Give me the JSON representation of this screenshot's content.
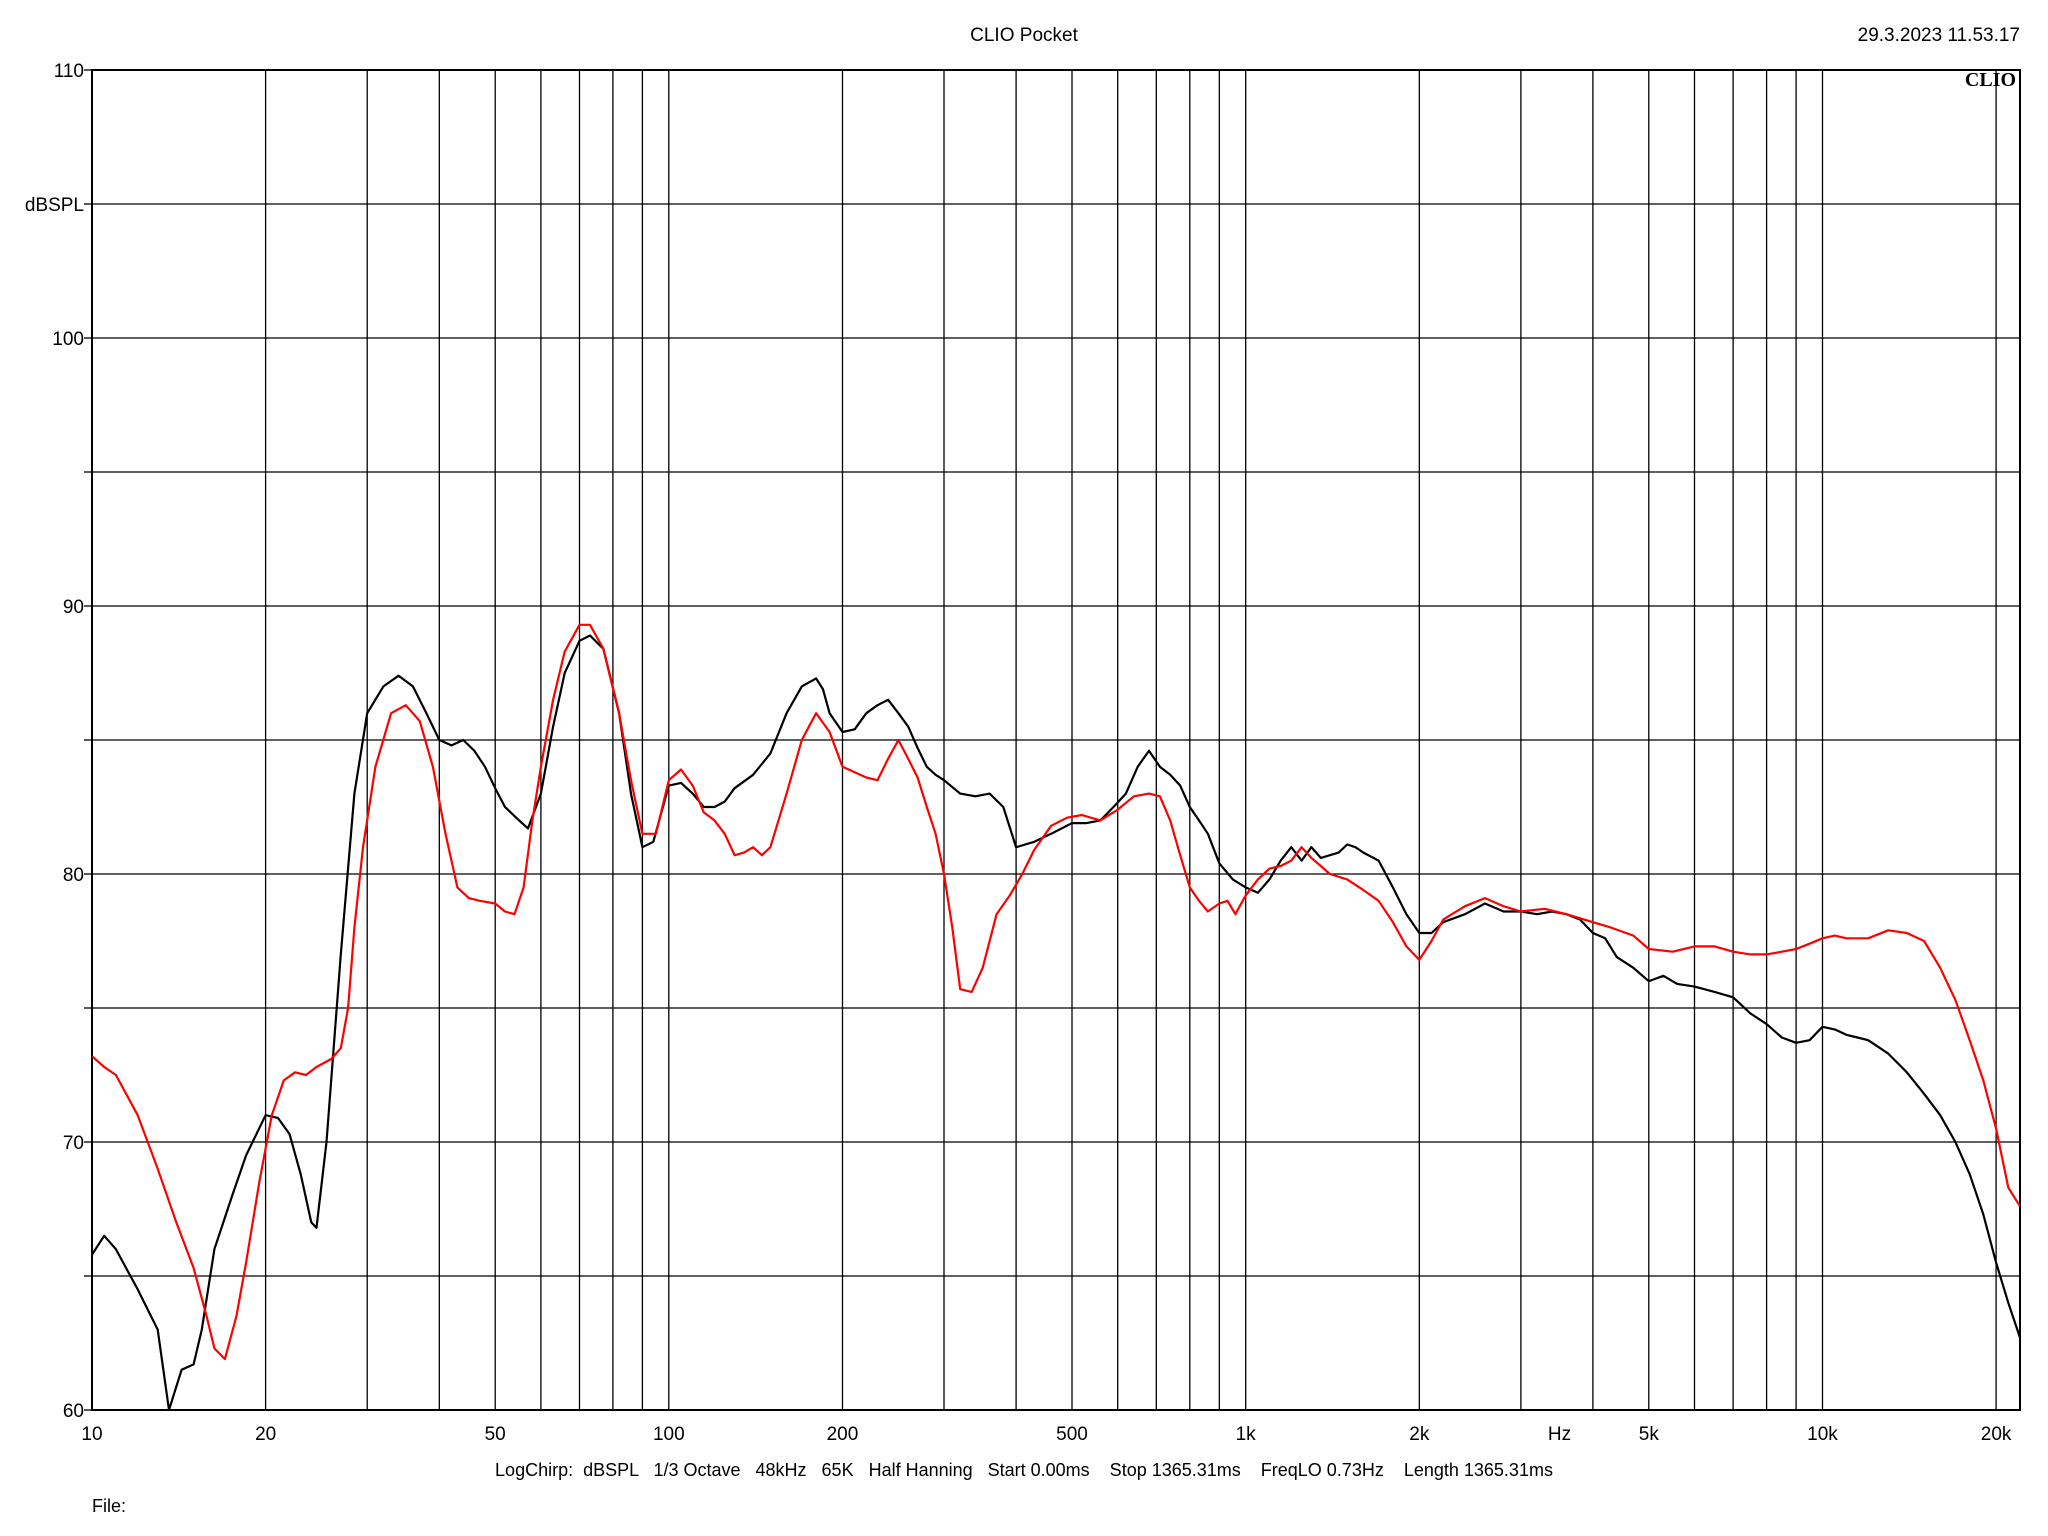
{
  "header": {
    "title": "CLIO Pocket",
    "timestamp": "29.3.2023 11.53.17",
    "logo": "CLIO"
  },
  "footer": {
    "settings": "LogChirp:  dBSPL   1/3 Octave   48kHz   65K   Half Hanning   Start 0.00ms    Stop 1365.31ms    FreqLO 0.73Hz    Length 1365.31ms",
    "file_label": "File:"
  },
  "colors": {
    "series_black": "#000000",
    "series_red": "#ff0000",
    "grid": "#000000",
    "background": "#ffffff"
  },
  "chart_data": {
    "type": "line",
    "title": "CLIO Pocket",
    "xlabel": "Hz",
    "ylabel": "dBSPL",
    "xscale": "log",
    "xlim": [
      10,
      22000
    ],
    "ylim": [
      60,
      110
    ],
    "grid": true,
    "x_ticks": [
      {
        "value": 10,
        "label": "10"
      },
      {
        "value": 20,
        "label": "20"
      },
      {
        "value": 50,
        "label": "50"
      },
      {
        "value": 100,
        "label": "100"
      },
      {
        "value": 200,
        "label": "200"
      },
      {
        "value": 500,
        "label": "500"
      },
      {
        "value": 1000,
        "label": "1k"
      },
      {
        "value": 2000,
        "label": "2k"
      },
      {
        "value": 5000,
        "label": "5k"
      },
      {
        "value": 10000,
        "label": "10k"
      },
      {
        "value": 20000,
        "label": "20k"
      }
    ],
    "x_unit_label": {
      "value": 3500,
      "label": "Hz"
    },
    "y_ticks": [
      {
        "value": 60,
        "label": "60"
      },
      {
        "value": 70,
        "label": "70"
      },
      {
        "value": 80,
        "label": "80"
      },
      {
        "value": 90,
        "label": "90"
      },
      {
        "value": 100,
        "label": "100"
      },
      {
        "value": 110,
        "label": "110"
      }
    ],
    "y_unit_label": {
      "value": 105,
      "label": "dBSPL"
    },
    "x_grid": [
      10,
      20,
      30,
      40,
      50,
      60,
      70,
      80,
      90,
      100,
      200,
      300,
      400,
      500,
      600,
      700,
      800,
      900,
      1000,
      2000,
      3000,
      4000,
      5000,
      6000,
      7000,
      8000,
      9000,
      10000,
      20000
    ],
    "y_grid": [
      60,
      65,
      70,
      75,
      80,
      85,
      90,
      95,
      100,
      105,
      110
    ],
    "series": [
      {
        "color": "#000000",
        "points": [
          [
            10,
            65.8
          ],
          [
            10.5,
            66.5
          ],
          [
            11,
            66
          ],
          [
            12,
            64.5
          ],
          [
            13,
            63
          ],
          [
            13.6,
            60
          ],
          [
            14.3,
            61.5
          ],
          [
            15,
            61.7
          ],
          [
            15.5,
            63
          ],
          [
            16.3,
            66
          ],
          [
            17.5,
            68
          ],
          [
            18.5,
            69.5
          ],
          [
            20,
            71
          ],
          [
            21,
            70.9
          ],
          [
            22,
            70.3
          ],
          [
            23,
            68.8
          ],
          [
            24,
            67
          ],
          [
            24.5,
            66.8
          ],
          [
            25.5,
            70
          ],
          [
            27,
            77
          ],
          [
            28.5,
            83
          ],
          [
            30,
            86
          ],
          [
            32,
            87
          ],
          [
            34,
            87.4
          ],
          [
            36,
            87
          ],
          [
            38,
            86
          ],
          [
            40,
            85
          ],
          [
            42,
            84.8
          ],
          [
            44,
            85
          ],
          [
            46,
            84.6
          ],
          [
            48,
            84
          ],
          [
            50,
            83.2
          ],
          [
            52,
            82.5
          ],
          [
            55,
            82
          ],
          [
            57,
            81.7
          ],
          [
            60,
            83
          ],
          [
            63,
            85.5
          ],
          [
            66,
            87.5
          ],
          [
            70,
            88.7
          ],
          [
            73,
            88.9
          ],
          [
            77,
            88.4
          ],
          [
            82,
            86
          ],
          [
            86,
            83
          ],
          [
            90,
            81
          ],
          [
            94,
            81.2
          ],
          [
            100,
            83.3
          ],
          [
            105,
            83.4
          ],
          [
            110,
            83
          ],
          [
            115,
            82.5
          ],
          [
            120,
            82.5
          ],
          [
            125,
            82.7
          ],
          [
            130,
            83.2
          ],
          [
            140,
            83.7
          ],
          [
            150,
            84.5
          ],
          [
            160,
            86
          ],
          [
            170,
            87
          ],
          [
            180,
            87.3
          ],
          [
            185,
            86.9
          ],
          [
            190,
            86
          ],
          [
            200,
            85.3
          ],
          [
            210,
            85.4
          ],
          [
            220,
            86
          ],
          [
            230,
            86.3
          ],
          [
            240,
            86.5
          ],
          [
            250,
            86
          ],
          [
            260,
            85.5
          ],
          [
            270,
            84.7
          ],
          [
            280,
            84
          ],
          [
            290,
            83.7
          ],
          [
            300,
            83.5
          ],
          [
            320,
            83
          ],
          [
            340,
            82.9
          ],
          [
            360,
            83
          ],
          [
            380,
            82.5
          ],
          [
            400,
            81
          ],
          [
            430,
            81.2
          ],
          [
            460,
            81.5
          ],
          [
            500,
            81.9
          ],
          [
            530,
            81.9
          ],
          [
            560,
            82
          ],
          [
            590,
            82.5
          ],
          [
            620,
            83
          ],
          [
            650,
            84
          ],
          [
            680,
            84.6
          ],
          [
            710,
            84
          ],
          [
            740,
            83.7
          ],
          [
            770,
            83.3
          ],
          [
            800,
            82.5
          ],
          [
            830,
            82
          ],
          [
            860,
            81.5
          ],
          [
            900,
            80.4
          ],
          [
            950,
            79.8
          ],
          [
            1000,
            79.5
          ],
          [
            1050,
            79.3
          ],
          [
            1100,
            79.8
          ],
          [
            1150,
            80.5
          ],
          [
            1200,
            81.0
          ],
          [
            1250,
            80.5
          ],
          [
            1300,
            81.0
          ],
          [
            1350,
            80.6
          ],
          [
            1400,
            80.7
          ],
          [
            1450,
            80.8
          ],
          [
            1500,
            81.1
          ],
          [
            1550,
            81.0
          ],
          [
            1600,
            80.8
          ],
          [
            1700,
            80.5
          ],
          [
            1800,
            79.5
          ],
          [
            1900,
            78.5
          ],
          [
            2000,
            77.8
          ],
          [
            2100,
            77.8
          ],
          [
            2200,
            78.2
          ],
          [
            2400,
            78.5
          ],
          [
            2600,
            78.9
          ],
          [
            2800,
            78.6
          ],
          [
            3000,
            78.6
          ],
          [
            3200,
            78.5
          ],
          [
            3400,
            78.6
          ],
          [
            3600,
            78.5
          ],
          [
            3800,
            78.3
          ],
          [
            4000,
            77.8
          ],
          [
            4200,
            77.6
          ],
          [
            4400,
            76.9
          ],
          [
            4700,
            76.5
          ],
          [
            5000,
            76.0
          ],
          [
            5300,
            76.2
          ],
          [
            5600,
            75.9
          ],
          [
            6000,
            75.8
          ],
          [
            6500,
            75.6
          ],
          [
            7000,
            75.4
          ],
          [
            7500,
            74.8
          ],
          [
            8000,
            74.4
          ],
          [
            8500,
            73.9
          ],
          [
            9000,
            73.7
          ],
          [
            9500,
            73.8
          ],
          [
            10000,
            74.3
          ],
          [
            10500,
            74.2
          ],
          [
            11000,
            74.0
          ],
          [
            11500,
            73.9
          ],
          [
            12000,
            73.8
          ],
          [
            13000,
            73.3
          ],
          [
            14000,
            72.6
          ],
          [
            15000,
            71.8
          ],
          [
            16000,
            71.0
          ],
          [
            17000,
            70.0
          ],
          [
            18000,
            68.8
          ],
          [
            19000,
            67.3
          ],
          [
            20000,
            65.5
          ],
          [
            21000,
            64
          ],
          [
            22000,
            62.7
          ]
        ]
      },
      {
        "color": "#ff0000",
        "points": [
          [
            10,
            73.2
          ],
          [
            10.5,
            72.8
          ],
          [
            11,
            72.5
          ],
          [
            12,
            71
          ],
          [
            13,
            69
          ],
          [
            14,
            67
          ],
          [
            15,
            65.3
          ],
          [
            15.8,
            63.5
          ],
          [
            16.3,
            62.3
          ],
          [
            17,
            61.9
          ],
          [
            17.8,
            63.5
          ],
          [
            18.5,
            65.5
          ],
          [
            19.5,
            68.5
          ],
          [
            20.5,
            71
          ],
          [
            21.5,
            72.3
          ],
          [
            22.5,
            72.6
          ],
          [
            23.5,
            72.5
          ],
          [
            24.5,
            72.8
          ],
          [
            26,
            73.1
          ],
          [
            27,
            73.5
          ],
          [
            27.8,
            75
          ],
          [
            28.5,
            78
          ],
          [
            29.5,
            81
          ],
          [
            31,
            84
          ],
          [
            33,
            86
          ],
          [
            35,
            86.3
          ],
          [
            37,
            85.7
          ],
          [
            39,
            84
          ],
          [
            41,
            81.5
          ],
          [
            43,
            79.5
          ],
          [
            45,
            79.1
          ],
          [
            47,
            79
          ],
          [
            50,
            78.9
          ],
          [
            52,
            78.6
          ],
          [
            54,
            78.5
          ],
          [
            56,
            79.5
          ],
          [
            58,
            82
          ],
          [
            60,
            84
          ],
          [
            63,
            86.5
          ],
          [
            66,
            88.3
          ],
          [
            70,
            89.3
          ],
          [
            73,
            89.3
          ],
          [
            77,
            88.4
          ],
          [
            82,
            86
          ],
          [
            86,
            83.5
          ],
          [
            90,
            81.5
          ],
          [
            95,
            81.5
          ],
          [
            100,
            83.5
          ],
          [
            105,
            83.9
          ],
          [
            110,
            83.3
          ],
          [
            115,
            82.3
          ],
          [
            120,
            82
          ],
          [
            125,
            81.5
          ],
          [
            130,
            80.7
          ],
          [
            135,
            80.8
          ],
          [
            140,
            81
          ],
          [
            145,
            80.7
          ],
          [
            150,
            81
          ],
          [
            160,
            83
          ],
          [
            170,
            85
          ],
          [
            180,
            86
          ],
          [
            190,
            85.3
          ],
          [
            200,
            84
          ],
          [
            210,
            83.8
          ],
          [
            220,
            83.6
          ],
          [
            230,
            83.5
          ],
          [
            240,
            84.3
          ],
          [
            250,
            85
          ],
          [
            260,
            84.3
          ],
          [
            270,
            83.6
          ],
          [
            280,
            82.5
          ],
          [
            290,
            81.5
          ],
          [
            300,
            80
          ],
          [
            310,
            78
          ],
          [
            320,
            75.7
          ],
          [
            335,
            75.6
          ],
          [
            350,
            76.5
          ],
          [
            370,
            78.5
          ],
          [
            390,
            79.2
          ],
          [
            410,
            80
          ],
          [
            430,
            80.9
          ],
          [
            460,
            81.8
          ],
          [
            490,
            82.1
          ],
          [
            520,
            82.2
          ],
          [
            560,
            82.0
          ],
          [
            600,
            82.4
          ],
          [
            640,
            82.9
          ],
          [
            680,
            83.0
          ],
          [
            710,
            82.9
          ],
          [
            740,
            82.0
          ],
          [
            770,
            80.7
          ],
          [
            800,
            79.5
          ],
          [
            830,
            79
          ],
          [
            860,
            78.6
          ],
          [
            900,
            78.9
          ],
          [
            930,
            79.0
          ],
          [
            960,
            78.5
          ],
          [
            1000,
            79.2
          ],
          [
            1050,
            79.8
          ],
          [
            1100,
            80.2
          ],
          [
            1150,
            80.3
          ],
          [
            1200,
            80.5
          ],
          [
            1250,
            81.0
          ],
          [
            1300,
            80.6
          ],
          [
            1350,
            80.3
          ],
          [
            1400,
            80.0
          ],
          [
            1500,
            79.8
          ],
          [
            1600,
            79.4
          ],
          [
            1700,
            79.0
          ],
          [
            1800,
            78.2
          ],
          [
            1900,
            77.3
          ],
          [
            2000,
            76.8
          ],
          [
            2100,
            77.5
          ],
          [
            2200,
            78.3
          ],
          [
            2400,
            78.8
          ],
          [
            2600,
            79.1
          ],
          [
            2800,
            78.8
          ],
          [
            3000,
            78.6
          ],
          [
            3300,
            78.7
          ],
          [
            3600,
            78.5
          ],
          [
            4000,
            78.2
          ],
          [
            4300,
            78.0
          ],
          [
            4700,
            77.7
          ],
          [
            5000,
            77.2
          ],
          [
            5500,
            77.1
          ],
          [
            6000,
            77.3
          ],
          [
            6500,
            77.3
          ],
          [
            7000,
            77.1
          ],
          [
            7500,
            77.0
          ],
          [
            8000,
            77.0
          ],
          [
            8500,
            77.1
          ],
          [
            9000,
            77.2
          ],
          [
            9500,
            77.4
          ],
          [
            10000,
            77.6
          ],
          [
            10500,
            77.7
          ],
          [
            11000,
            77.6
          ],
          [
            12000,
            77.6
          ],
          [
            13000,
            77.9
          ],
          [
            14000,
            77.8
          ],
          [
            15000,
            77.5
          ],
          [
            16000,
            76.5
          ],
          [
            17000,
            75.3
          ],
          [
            18000,
            73.8
          ],
          [
            19000,
            72.3
          ],
          [
            20000,
            70.5
          ],
          [
            21000,
            68.3
          ],
          [
            22000,
            67.6
          ]
        ]
      }
    ]
  }
}
